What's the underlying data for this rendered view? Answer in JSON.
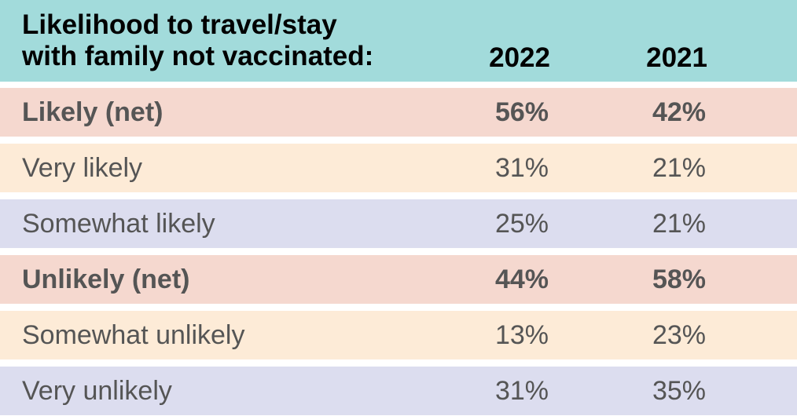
{
  "chart_data": {
    "type": "table",
    "title": "Likelihood to travel/stay with family not vaccinated:",
    "title_lines": [
      "Likelihood to travel/stay",
      "with family not vaccinated:"
    ],
    "columns": [
      "2022",
      "2021"
    ],
    "rows": [
      {
        "label": "Likely (net)",
        "values": [
          "56%",
          "42%"
        ],
        "bold": true,
        "color": "#f5d8cf"
      },
      {
        "label": "Very likely",
        "values": [
          "31%",
          "21%"
        ],
        "bold": false,
        "color": "#fdebd7"
      },
      {
        "label": "Somewhat likely",
        "values": [
          "25%",
          "21%"
        ],
        "bold": false,
        "color": "#dcddef"
      },
      {
        "label": "Unlikely (net)",
        "values": [
          "44%",
          "58%"
        ],
        "bold": true,
        "color": "#f5d8cf"
      },
      {
        "label": "Somewhat unlikely",
        "values": [
          "13%",
          "23%"
        ],
        "bold": false,
        "color": "#fdebd7"
      },
      {
        "label": "Very unlikely",
        "values": [
          "31%",
          "35%"
        ],
        "bold": false,
        "color": "#dcddef"
      }
    ]
  },
  "colors": {
    "header_background": "#a2dbdb",
    "net_row": "#f5d8cf",
    "likely_row": "#fdebd7",
    "somewhat_row": "#dcddef"
  }
}
